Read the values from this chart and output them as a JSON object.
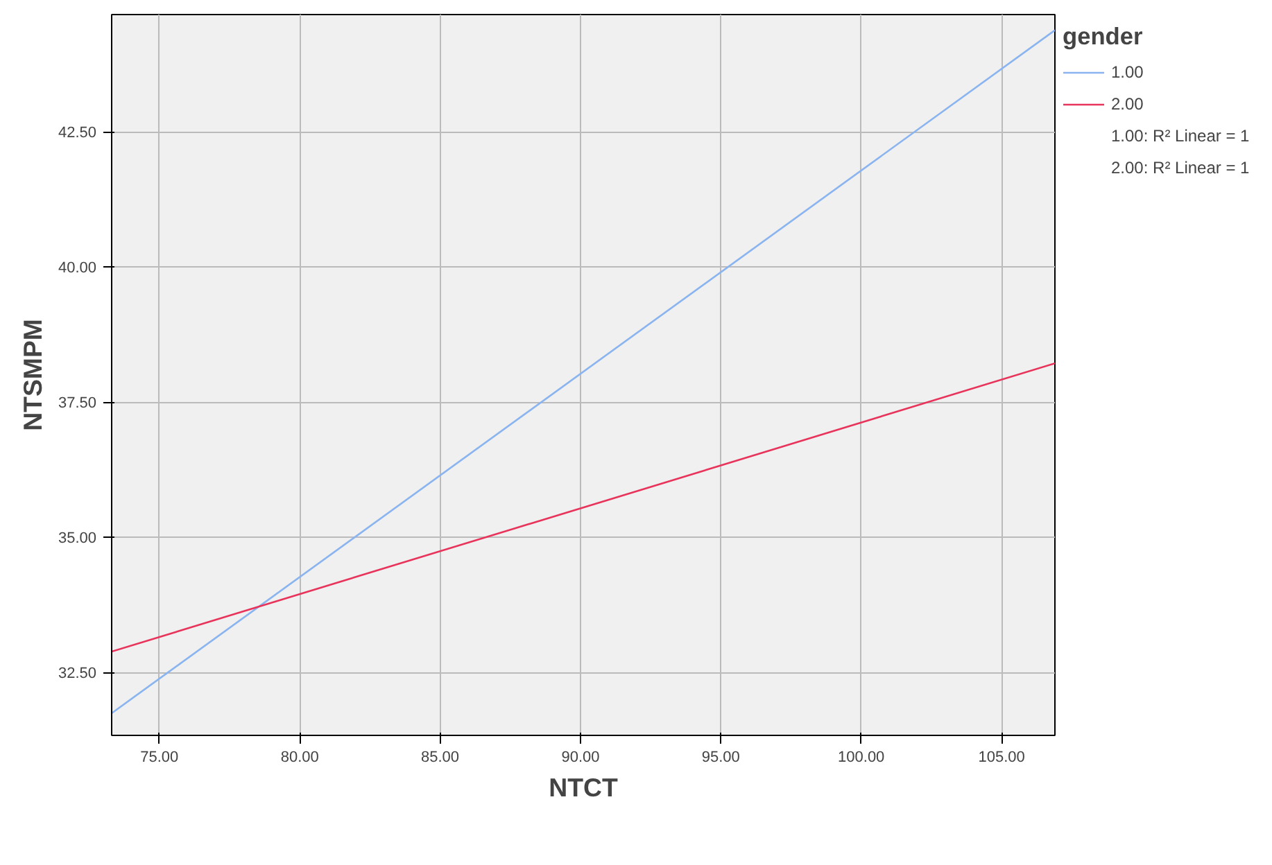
{
  "chart_data": {
    "type": "line",
    "xlabel": "NTCT",
    "ylabel": "NTSMPM",
    "legend_title": "gender",
    "x": [
      73.3,
      106.9
    ],
    "series": [
      {
        "name": "1.00",
        "color": "#8ab4f0",
        "values": [
          31.75,
          44.38
        ]
      },
      {
        "name": "2.00",
        "color": "#e8335a",
        "values": [
          32.89,
          38.22
        ]
      }
    ],
    "xlim": [
      73.3,
      106.9
    ],
    "ylim": [
      31.34,
      44.67
    ],
    "xticks": [
      {
        "value": 75,
        "label": "75.00"
      },
      {
        "value": 80,
        "label": "80.00"
      },
      {
        "value": 85,
        "label": "85.00"
      },
      {
        "value": 90,
        "label": "90.00"
      },
      {
        "value": 95,
        "label": "95.00"
      },
      {
        "value": 100,
        "label": "100.00"
      },
      {
        "value": 105,
        "label": "105.00"
      }
    ],
    "yticks": [
      {
        "value": 32.5,
        "label": "32.50"
      },
      {
        "value": 35,
        "label": "35.00"
      },
      {
        "value": 37.5,
        "label": "37.50"
      },
      {
        "value": 40,
        "label": "40.00"
      },
      {
        "value": 42.5,
        "label": "42.50"
      }
    ],
    "grid": true,
    "legend": "top right",
    "marker": "none",
    "line_style": "solid",
    "annotations": [
      "1.00: R² Linear = 1",
      "2.00: R² Linear = 1"
    ]
  }
}
